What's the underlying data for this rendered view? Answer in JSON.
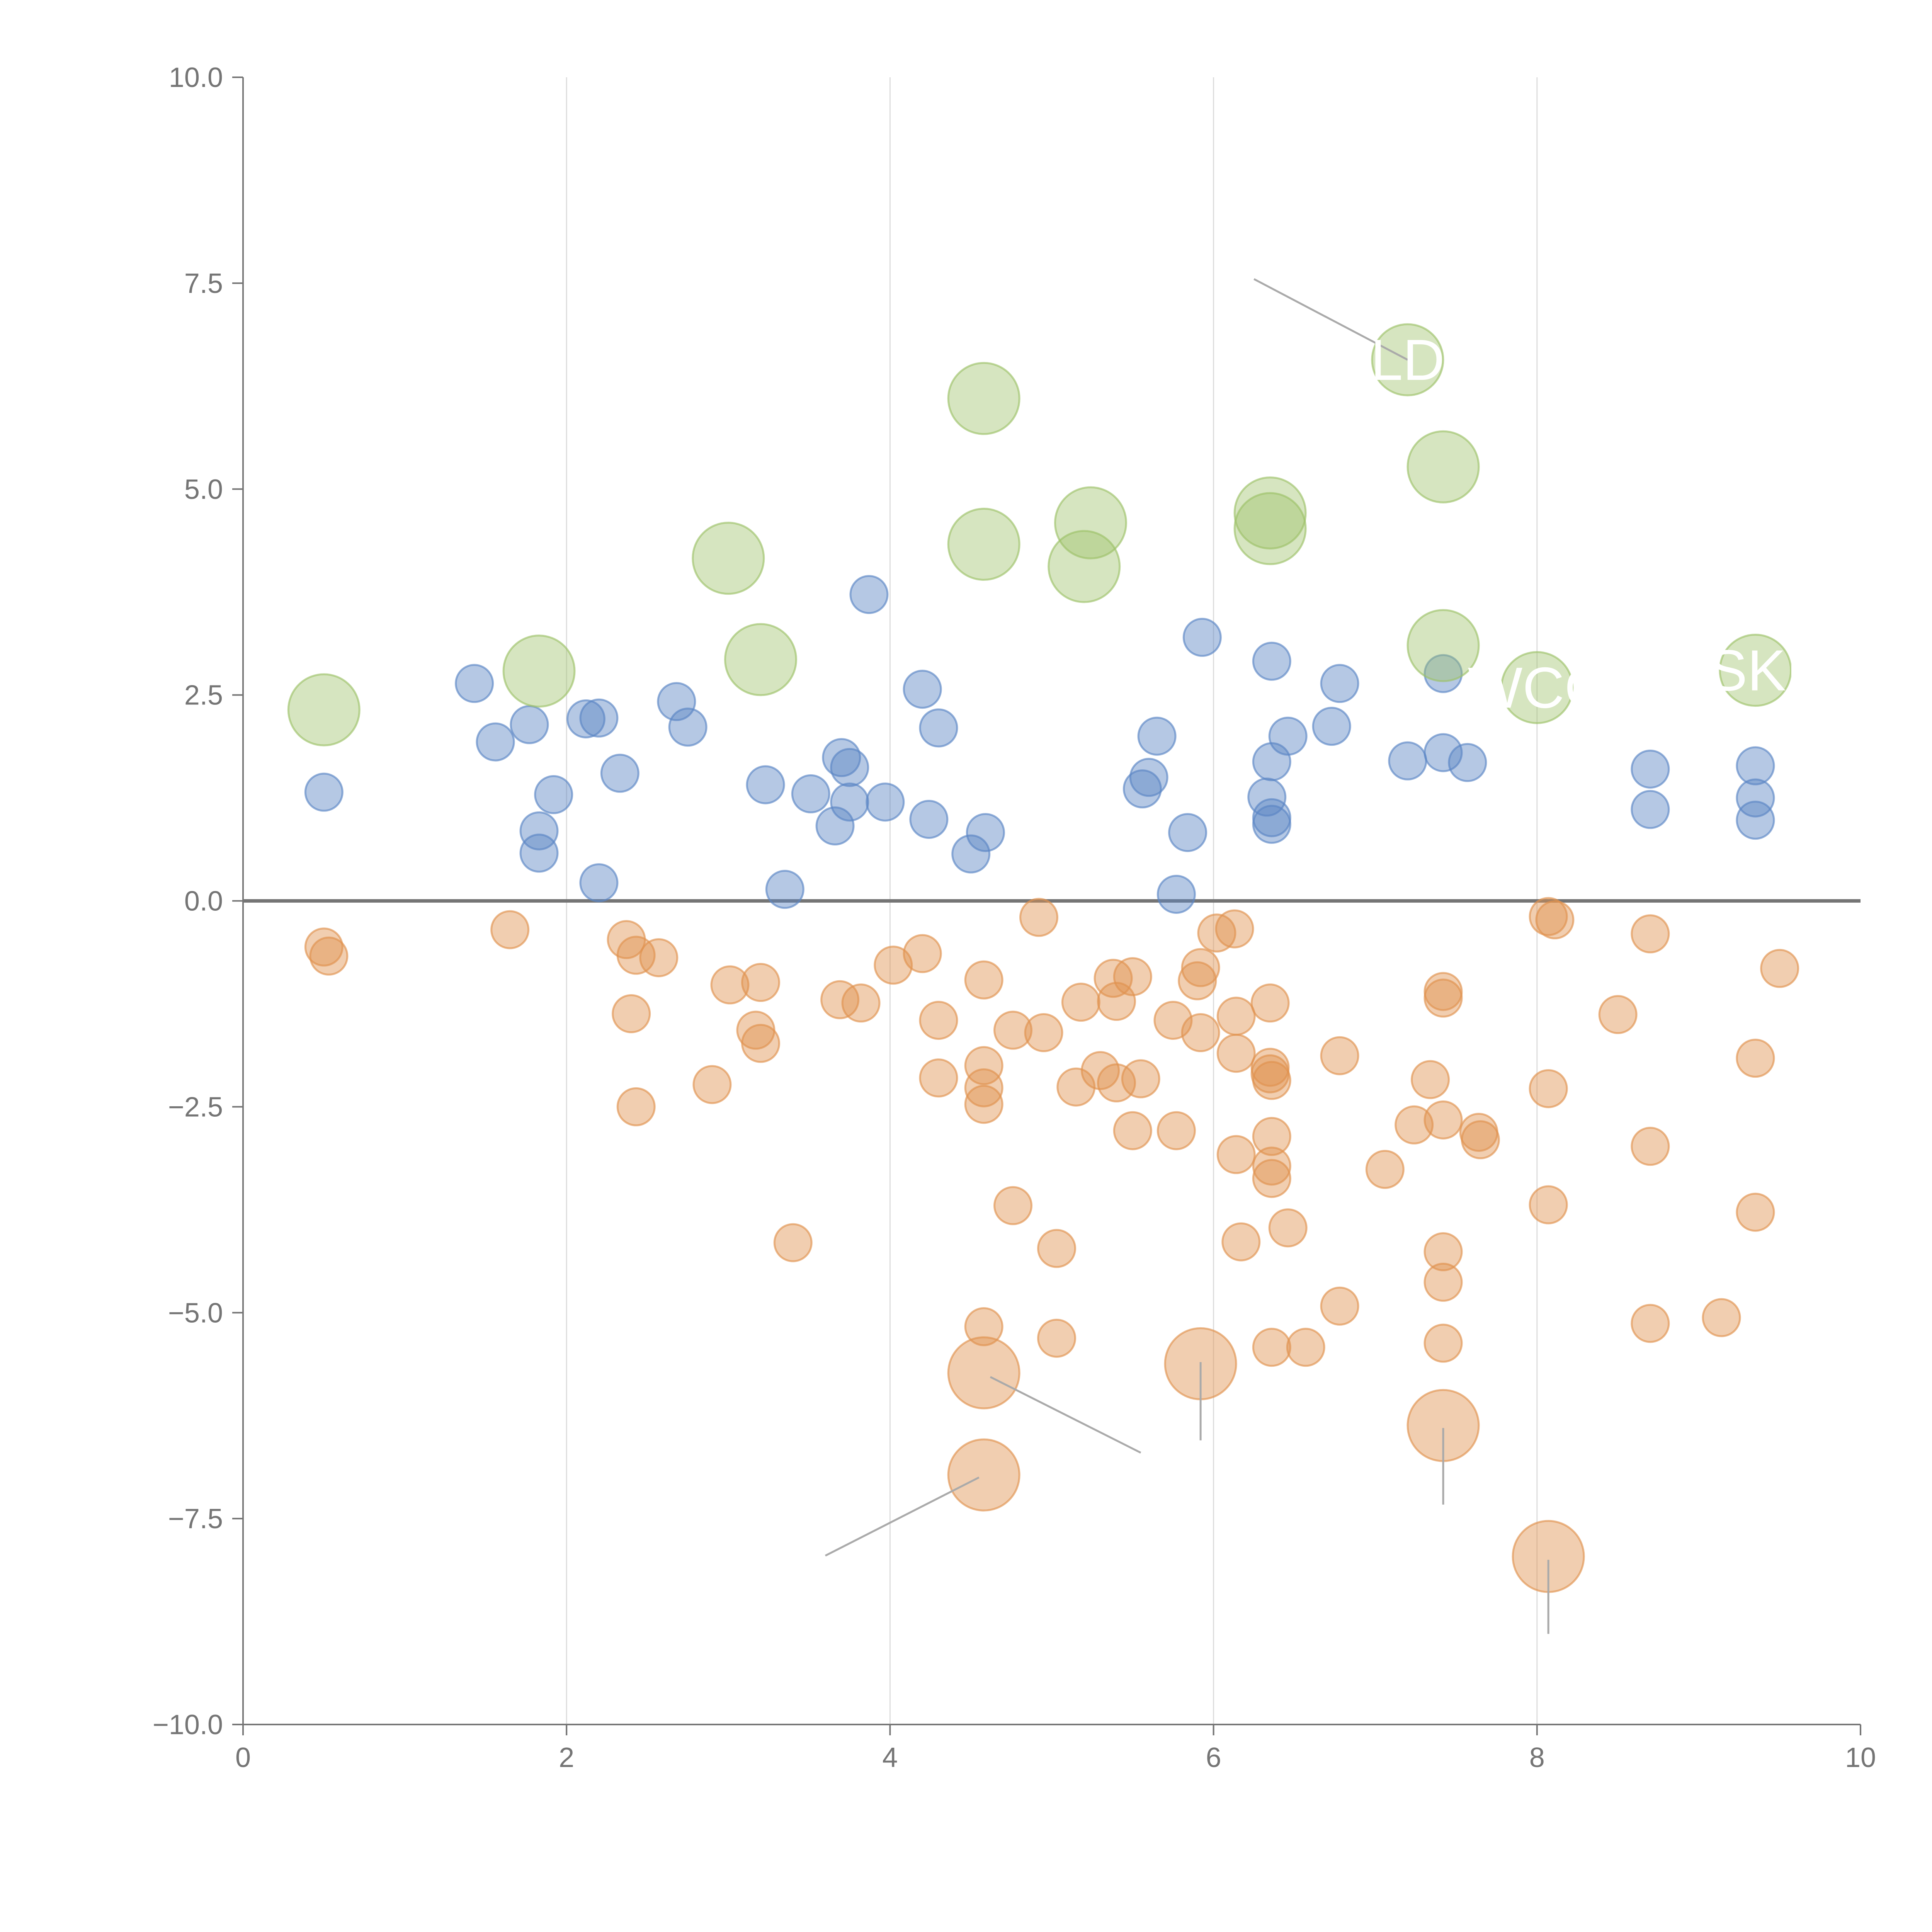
{
  "chart_data": {
    "type": "scatter",
    "title": "",
    "xlabel": "",
    "ylabel": "",
    "xlim": [
      0,
      10
    ],
    "ylim": [
      -10,
      10
    ],
    "x_ticks": [
      0,
      2,
      4,
      6,
      8,
      10
    ],
    "y_ticks": [
      10,
      7.5,
      5,
      2.5,
      0,
      -2.5,
      -5,
      -7.5,
      -10
    ],
    "x_tick_labels": [
      "0",
      "2",
      "4",
      "6",
      "8",
      "10"
    ],
    "y_tick_labels": [
      "10.0",
      "7.5",
      "5.0",
      "2.5",
      "0.0",
      "−2.5",
      "−5.0",
      "−7.5",
      "−10.0"
    ],
    "grid": "vertical lines at x ticks",
    "legend": "none",
    "colors": {
      "positive": "#5b86c4",
      "negative": "#e0924f",
      "highlight": "#9dc168",
      "zero_line": "#757575",
      "grid": "#dddddd",
      "callout_line": "#aaaaaa",
      "callout_label": "#ffffff"
    },
    "series": [
      {
        "name": "positive",
        "points": [
          [
            0.5,
            1.32
          ],
          [
            1.43,
            2.64
          ],
          [
            1.56,
            1.93
          ],
          [
            1.77,
            2.14
          ],
          [
            1.83,
            0.85
          ],
          [
            1.83,
            0.58
          ],
          [
            1.92,
            1.29
          ],
          [
            2.12,
            2.21
          ],
          [
            2.2,
            2.22
          ],
          [
            2.2,
            0.22
          ],
          [
            2.33,
            1.55
          ],
          [
            2.68,
            2.42
          ],
          [
            2.75,
            2.11
          ],
          [
            3.23,
            1.41
          ],
          [
            3.35,
            0.14
          ],
          [
            3.51,
            1.3
          ],
          [
            3.66,
            0.91
          ],
          [
            3.7,
            1.74
          ],
          [
            3.75,
            1.62
          ],
          [
            3.75,
            1.2
          ],
          [
            3.87,
            3.72
          ],
          [
            3.97,
            1.2
          ],
          [
            4.2,
            2.57
          ],
          [
            4.24,
            0.99
          ],
          [
            4.3,
            2.1
          ],
          [
            4.5,
            0.57
          ],
          [
            4.59,
            0.83
          ],
          [
            5.56,
            1.36
          ],
          [
            5.6,
            1.5
          ],
          [
            5.65,
            2.0
          ],
          [
            5.77,
            0.08
          ],
          [
            5.84,
            0.83
          ],
          [
            5.93,
            3.2
          ],
          [
            6.33,
            1.26
          ],
          [
            6.36,
            2.91
          ],
          [
            6.36,
            1.69
          ],
          [
            6.36,
            1.01
          ],
          [
            6.36,
            0.93
          ],
          [
            6.46,
            2.0
          ],
          [
            6.73,
            2.12
          ],
          [
            6.78,
            2.64
          ],
          [
            7.2,
            1.7
          ],
          [
            7.42,
            2.76
          ],
          [
            7.42,
            1.8
          ],
          [
            7.57,
            1.68
          ],
          [
            8.7,
            1.6
          ],
          [
            8.7,
            1.11
          ],
          [
            9.35,
            1.64
          ],
          [
            9.35,
            1.25
          ],
          [
            9.35,
            0.98
          ]
        ]
      },
      {
        "name": "negative",
        "points": [
          [
            0.5,
            -0.56
          ],
          [
            0.53,
            -0.67
          ],
          [
            1.65,
            -0.35
          ],
          [
            2.37,
            -0.47
          ],
          [
            2.43,
            -0.66
          ],
          [
            2.4,
            -1.37
          ],
          [
            2.43,
            -2.5
          ],
          [
            2.57,
            -0.69
          ],
          [
            2.9,
            -2.23
          ],
          [
            3.01,
            -1.02
          ],
          [
            3.17,
            -1.57
          ],
          [
            3.2,
            -0.99
          ],
          [
            3.2,
            -1.73
          ],
          [
            3.4,
            -4.15
          ],
          [
            3.69,
            -1.2
          ],
          [
            3.82,
            -1.24
          ],
          [
            4.02,
            -0.78
          ],
          [
            4.2,
            -0.64
          ],
          [
            4.3,
            -1.45
          ],
          [
            4.3,
            -2.15
          ],
          [
            4.58,
            -0.96
          ],
          [
            4.58,
            -2.0
          ],
          [
            4.58,
            -2.27
          ],
          [
            4.58,
            -2.47
          ],
          [
            4.58,
            -5.17
          ],
          [
            4.76,
            -3.7
          ],
          [
            4.76,
            -1.57
          ],
          [
            4.92,
            -0.2
          ],
          [
            4.95,
            -1.6
          ],
          [
            5.03,
            -4.22
          ],
          [
            5.03,
            -5.31
          ],
          [
            5.15,
            -2.26
          ],
          [
            5.18,
            -1.23
          ],
          [
            5.3,
            -2.06
          ],
          [
            5.38,
            -0.94
          ],
          [
            5.4,
            -1.22
          ],
          [
            5.4,
            -2.21
          ],
          [
            5.5,
            -0.92
          ],
          [
            5.5,
            -2.79
          ],
          [
            5.55,
            -2.16
          ],
          [
            5.75,
            -1.45
          ],
          [
            5.77,
            -2.79
          ],
          [
            5.9,
            -0.97
          ],
          [
            5.92,
            -0.81
          ],
          [
            5.92,
            -1.6
          ],
          [
            6.02,
            -0.39
          ],
          [
            6.13,
            -0.34
          ],
          [
            6.14,
            -1.4
          ],
          [
            6.14,
            -1.85
          ],
          [
            6.14,
            -3.08
          ],
          [
            6.17,
            -4.14
          ],
          [
            6.35,
            -1.24
          ],
          [
            6.35,
            -2.02
          ],
          [
            6.35,
            -2.1
          ],
          [
            6.36,
            -2.18
          ],
          [
            6.36,
            -2.86
          ],
          [
            6.36,
            -3.22
          ],
          [
            6.36,
            -3.37
          ],
          [
            6.36,
            -5.42
          ],
          [
            6.46,
            -3.97
          ],
          [
            6.57,
            -5.42
          ],
          [
            6.78,
            -1.88
          ],
          [
            6.78,
            -4.92
          ],
          [
            7.06,
            -3.26
          ],
          [
            7.24,
            -2.72
          ],
          [
            7.34,
            -2.17
          ],
          [
            7.42,
            -1.1
          ],
          [
            7.42,
            -1.18
          ],
          [
            7.42,
            -2.66
          ],
          [
            7.42,
            -4.26
          ],
          [
            7.42,
            -4.63
          ],
          [
            7.42,
            -5.37
          ],
          [
            7.64,
            -2.81
          ],
          [
            7.65,
            -2.9
          ],
          [
            8.07,
            -0.19
          ],
          [
            8.11,
            -0.23
          ],
          [
            8.07,
            -2.28
          ],
          [
            8.07,
            -3.69
          ],
          [
            8.5,
            -1.38
          ],
          [
            8.7,
            -0.4
          ],
          [
            8.7,
            -2.98
          ],
          [
            8.7,
            -5.13
          ],
          [
            9.14,
            -5.06
          ],
          [
            9.35,
            -1.91
          ],
          [
            9.35,
            -3.78
          ],
          [
            9.5,
            -0.82
          ]
        ]
      },
      {
        "name": "highlight",
        "points": [
          [
            0.5,
            2.32
          ],
          [
            1.83,
            2.79
          ],
          [
            3.0,
            4.16
          ],
          [
            3.2,
            2.93
          ],
          [
            4.58,
            6.1
          ],
          [
            4.58,
            4.33
          ],
          [
            5.24,
            4.59
          ],
          [
            5.2,
            4.06
          ],
          [
            6.35,
            4.71
          ],
          [
            6.35,
            4.52
          ],
          [
            7.2,
            6.57
          ],
          [
            7.42,
            5.27
          ],
          [
            7.42,
            3.1
          ],
          [
            8.0,
            2.59
          ],
          [
            9.35,
            2.8
          ]
        ]
      },
      {
        "name": "negative-large",
        "points": [
          [
            4.58,
            -5.73
          ],
          [
            4.58,
            -6.97
          ],
          [
            5.92,
            -5.62
          ],
          [
            7.42,
            -6.37
          ],
          [
            8.07,
            -7.96
          ]
        ]
      }
    ],
    "annotations": [
      {
        "label": "LD",
        "point": [
          7.2,
          6.57
        ],
        "line_from": [
          6.25,
          7.55
        ],
        "line_to": [
          7.2,
          6.57
        ]
      },
      {
        "label": "WCC",
        "point": [
          8.0,
          2.59
        ],
        "line_from": [
          8.0,
          2.59
        ],
        "line_to": [
          8.0,
          2.59
        ]
      },
      {
        "label": "SKI",
        "point": [
          9.35,
          2.8
        ],
        "line_from": [
          9.35,
          2.8
        ],
        "line_to": [
          9.35,
          2.8
        ]
      },
      {
        "label": "",
        "point": [
          4.58,
          -5.73
        ],
        "line_from": [
          4.62,
          -5.78
        ],
        "line_to": [
          5.55,
          -6.7
        ]
      },
      {
        "label": "",
        "point": [
          4.58,
          -6.97
        ],
        "line_from": [
          4.55,
          -7.0
        ],
        "line_to": [
          3.6,
          -7.95
        ]
      },
      {
        "label": "",
        "point": [
          5.92,
          -5.62
        ],
        "line_from": [
          5.92,
          -5.6
        ],
        "line_to": [
          5.92,
          -6.55
        ]
      },
      {
        "label": "",
        "point": [
          7.42,
          -6.37
        ],
        "line_from": [
          7.42,
          -6.4
        ],
        "line_to": [
          7.42,
          -7.33
        ]
      },
      {
        "label": "",
        "point": [
          8.07,
          -7.96
        ],
        "line_from": [
          8.07,
          -8.0
        ],
        "line_to": [
          8.07,
          -8.9
        ]
      }
    ]
  }
}
